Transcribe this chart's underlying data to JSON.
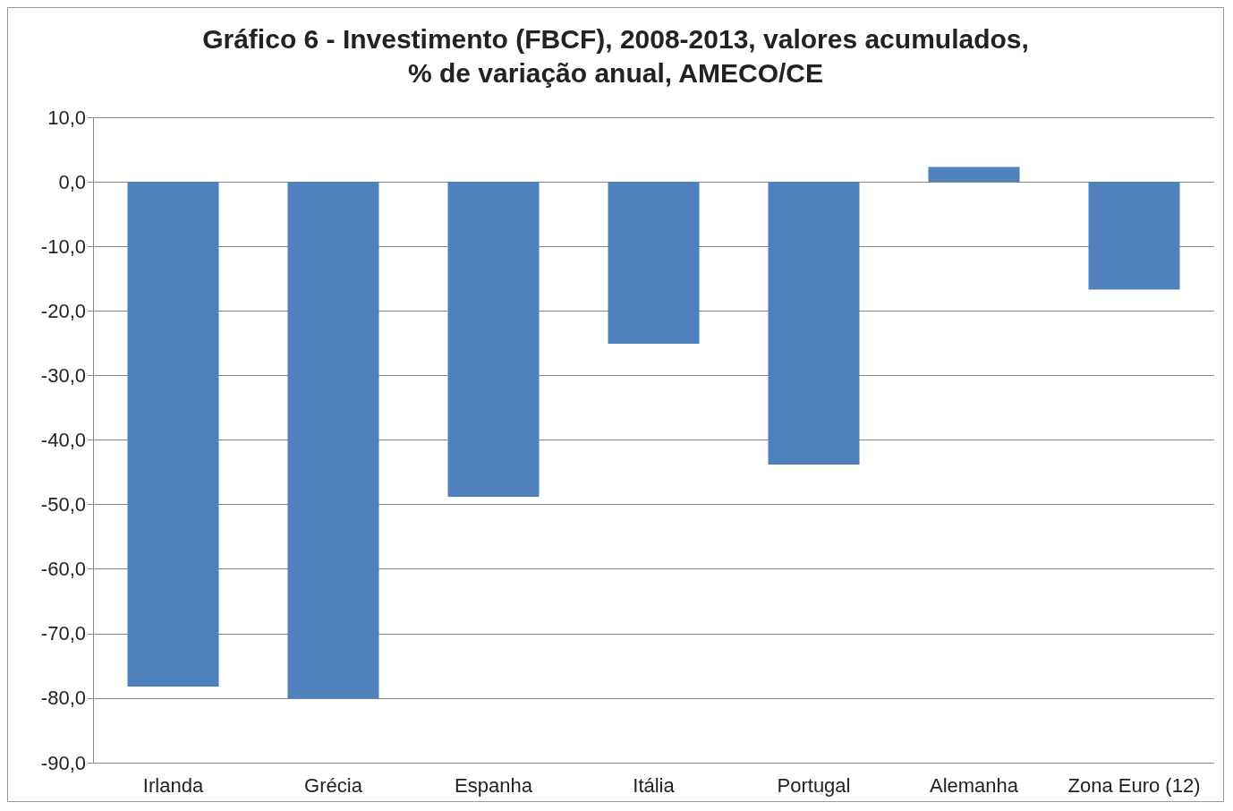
{
  "chart_data": {
    "type": "bar",
    "title": "Gráfico 6 - Investimento (FBCF), 2008-2013, valores acumulados,\n% de variação anual, AMECO/CE",
    "categories": [
      "Irlanda",
      "Grécia",
      "Espanha",
      "Itália",
      "Portugal",
      "Alemanha",
      "Zona Euro (12)"
    ],
    "values": [
      -78.2,
      -80.1,
      -48.8,
      -25.1,
      -43.8,
      2.3,
      -16.7
    ],
    "color": "#4f81bd",
    "ylim": [
      -90,
      10
    ],
    "yticks": [
      {
        "value": -90,
        "label": "-90,0"
      },
      {
        "value": -80,
        "label": "-80,0"
      },
      {
        "value": -70,
        "label": "-70,0"
      },
      {
        "value": -60,
        "label": "-60,0"
      },
      {
        "value": -50,
        "label": "-50,0"
      },
      {
        "value": -40,
        "label": "-40,0"
      },
      {
        "value": -30,
        "label": "-30,0"
      },
      {
        "value": -20,
        "label": "-20,0"
      },
      {
        "value": -10,
        "label": "-10,0"
      },
      {
        "value": 0,
        "label": "0,0"
      },
      {
        "value": 10,
        "label": "10,0"
      }
    ],
    "grid": "y"
  }
}
